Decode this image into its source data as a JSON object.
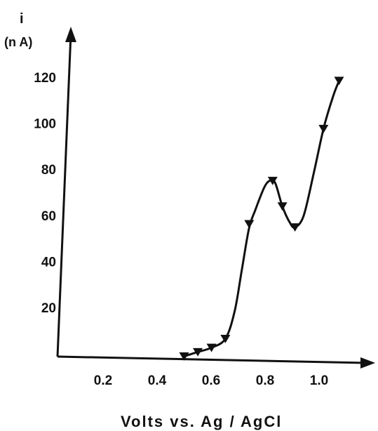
{
  "chart_data": {
    "type": "line",
    "title": "",
    "ylabel_top": "i",
    "ylabel_unit": "(n A)",
    "xlabel": "Volts vs. Ag / AgCl",
    "xlim": [
      0,
      1.2
    ],
    "ylim": [
      0,
      130
    ],
    "x_ticks": [
      {
        "value": 0.2,
        "label": "0.2"
      },
      {
        "value": 0.4,
        "label": "0.4"
      },
      {
        "value": 0.6,
        "label": "0.6"
      },
      {
        "value": 0.8,
        "label": "0.8"
      },
      {
        "value": 1.0,
        "label": "1.0"
      }
    ],
    "y_ticks": [
      {
        "value": 20,
        "label": "20"
      },
      {
        "value": 40,
        "label": "40"
      },
      {
        "value": 60,
        "label": "60"
      },
      {
        "value": 80,
        "label": "80"
      },
      {
        "value": 100,
        "label": "100"
      },
      {
        "value": 120,
        "label": "120"
      }
    ],
    "grid": false,
    "series": [
      {
        "marker": "triangle-down",
        "color": "#111111",
        "points": [
          {
            "x": 0.5,
            "y": 0
          },
          {
            "x": 0.55,
            "y": 2
          },
          {
            "x": 0.6,
            "y": 4
          },
          {
            "x": 0.65,
            "y": 8
          },
          {
            "x": 0.72,
            "y": 58
          },
          {
            "x": 0.8,
            "y": 77
          },
          {
            "x": 0.84,
            "y": 66
          },
          {
            "x": 0.89,
            "y": 57
          },
          {
            "x": 0.98,
            "y": 100
          },
          {
            "x": 1.03,
            "y": 121
          }
        ]
      }
    ],
    "curve": [
      {
        "x": 0.5,
        "y": 0
      },
      {
        "x": 0.55,
        "y": 2
      },
      {
        "x": 0.6,
        "y": 4
      },
      {
        "x": 0.65,
        "y": 8
      },
      {
        "x": 0.68,
        "y": 20
      },
      {
        "x": 0.7,
        "y": 38
      },
      {
        "x": 0.72,
        "y": 56
      },
      {
        "x": 0.74,
        "y": 64
      },
      {
        "x": 0.77,
        "y": 74
      },
      {
        "x": 0.79,
        "y": 77
      },
      {
        "x": 0.81,
        "y": 76
      },
      {
        "x": 0.84,
        "y": 66
      },
      {
        "x": 0.87,
        "y": 59
      },
      {
        "x": 0.89,
        "y": 57
      },
      {
        "x": 0.92,
        "y": 62
      },
      {
        "x": 0.95,
        "y": 80
      },
      {
        "x": 0.98,
        "y": 100
      },
      {
        "x": 1.01,
        "y": 114
      },
      {
        "x": 1.03,
        "y": 121
      }
    ]
  }
}
